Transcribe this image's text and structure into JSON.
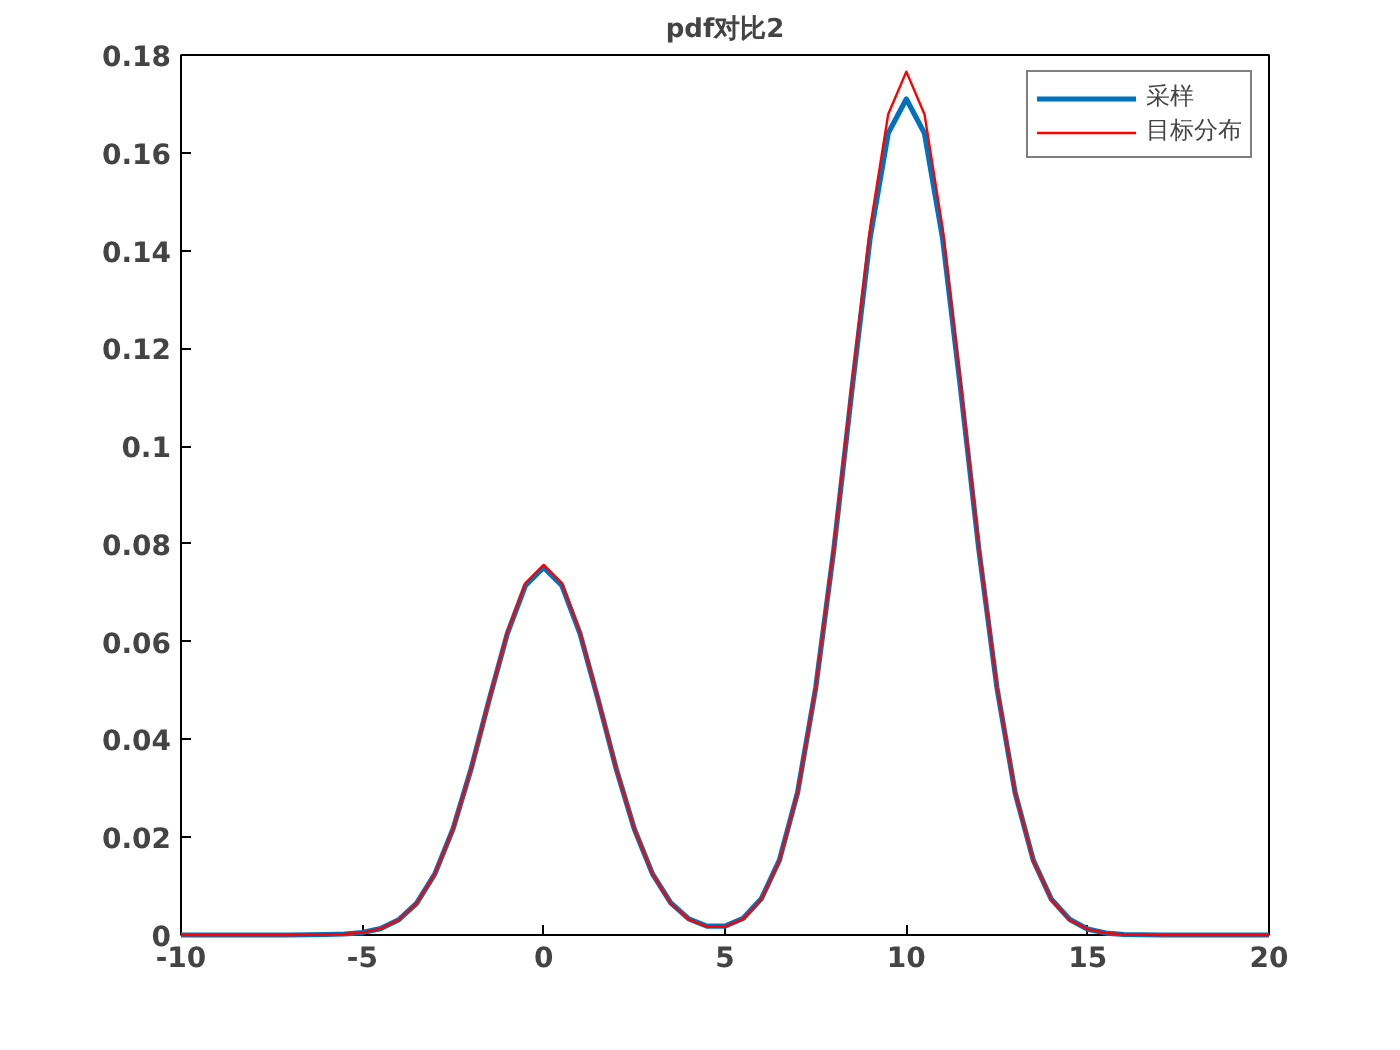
{
  "chart_data": {
    "type": "line",
    "title": "pdf对比2",
    "x": [
      -10,
      -7,
      -6,
      -5.5,
      -5,
      -4.5,
      -4,
      -3.5,
      -3,
      -2.5,
      -2,
      -1.5,
      -1,
      -0.5,
      0,
      0.5,
      1,
      1.5,
      2,
      2.5,
      3,
      3.5,
      4,
      4.5,
      5,
      5.5,
      6,
      6.5,
      7,
      7.5,
      8,
      8.5,
      9,
      9.5,
      10,
      10.5,
      11,
      11.5,
      12,
      12.5,
      13,
      13.5,
      14,
      14.5,
      15,
      15.5,
      16,
      17,
      20
    ],
    "series": [
      {
        "name": "采样",
        "color": "#0072bd",
        "values": [
          0,
          0,
          0.0001,
          0.0002,
          0.0005,
          0.0013,
          0.0031,
          0.0065,
          0.0125,
          0.0217,
          0.034,
          0.0482,
          0.0617,
          0.0715,
          0.0752,
          0.0715,
          0.0617,
          0.0482,
          0.034,
          0.0217,
          0.0125,
          0.0066,
          0.0033,
          0.0018,
          0.0018,
          0.0034,
          0.0074,
          0.0153,
          0.0291,
          0.0505,
          0.0788,
          0.1115,
          0.1425,
          0.164,
          0.171,
          0.164,
          0.1425,
          0.1115,
          0.0788,
          0.0505,
          0.0291,
          0.0153,
          0.0073,
          0.0032,
          0.0012,
          0.0004,
          0.0001,
          0,
          0
        ]
      },
      {
        "name": "目标分布",
        "color": "#ff0000",
        "values": [
          0,
          0,
          0.0001,
          0.0002,
          0.0005,
          0.0013,
          0.0031,
          0.0065,
          0.0125,
          0.0217,
          0.034,
          0.0483,
          0.062,
          0.072,
          0.0757,
          0.072,
          0.062,
          0.0483,
          0.034,
          0.0217,
          0.0125,
          0.0065,
          0.0032,
          0.0017,
          0.0017,
          0.0033,
          0.0073,
          0.0152,
          0.0291,
          0.0507,
          0.0793,
          0.1127,
          0.1446,
          0.1679,
          0.1766,
          0.1679,
          0.1446,
          0.1127,
          0.0793,
          0.0507,
          0.0291,
          0.0152,
          0.0072,
          0.0031,
          0.0012,
          0.0004,
          0.0001,
          0,
          0
        ]
      }
    ],
    "xlim": [
      -10,
      20
    ],
    "xticks": [
      -10,
      -5,
      0,
      5,
      10,
      15,
      20
    ],
    "ylim": [
      0,
      0.18
    ],
    "yticks": [
      0,
      0.02,
      0.04,
      0.06,
      0.08,
      0.1,
      0.12,
      0.14,
      0.16,
      0.18
    ],
    "grid": false,
    "legend": "top right",
    "line_style": "solid",
    "marker": "none"
  }
}
